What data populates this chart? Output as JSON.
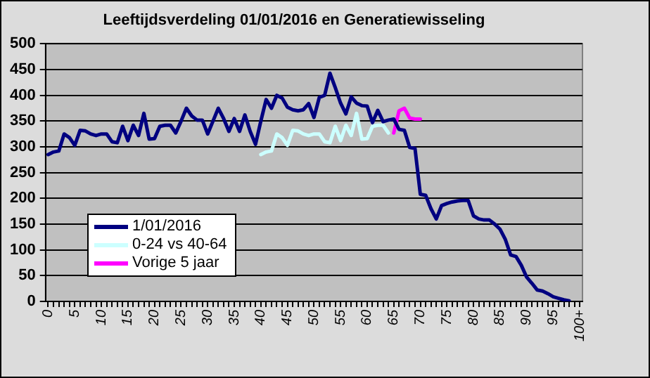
{
  "chart_data": {
    "type": "line",
    "title": "Leeftijdsverdeling 01/01/2016 en Generatiewisseling",
    "categories": [
      "0",
      null,
      null,
      null,
      null,
      "5",
      null,
      null,
      null,
      null,
      "10",
      null,
      null,
      null,
      null,
      "15",
      null,
      null,
      null,
      null,
      "20",
      null,
      null,
      null,
      null,
      "25",
      null,
      null,
      null,
      null,
      "30",
      null,
      null,
      null,
      null,
      "35",
      null,
      null,
      null,
      null,
      "40",
      null,
      null,
      null,
      null,
      "45",
      null,
      null,
      null,
      null,
      "50",
      null,
      null,
      null,
      null,
      "55",
      null,
      null,
      null,
      null,
      "60",
      null,
      null,
      null,
      null,
      "65",
      null,
      null,
      null,
      null,
      "70",
      null,
      null,
      null,
      null,
      "75",
      null,
      null,
      null,
      null,
      "80",
      null,
      null,
      null,
      null,
      "85",
      null,
      null,
      null,
      null,
      "90",
      null,
      null,
      null,
      null,
      "95",
      null,
      null,
      null,
      null,
      "100+"
    ],
    "series": [
      {
        "name": "1/01/2016",
        "color": "#000080",
        "values": [
          285,
          290,
          292,
          325,
          318,
          303,
          332,
          331,
          325,
          322,
          325,
          325,
          310,
          308,
          340,
          312,
          342,
          322,
          365,
          315,
          316,
          340,
          342,
          342,
          327,
          350,
          375,
          360,
          352,
          352,
          325,
          350,
          375,
          355,
          330,
          355,
          330,
          362,
          330,
          305,
          350,
          392,
          375,
          400,
          395,
          377,
          372,
          370,
          372,
          384,
          357,
          396,
          400,
          443,
          415,
          385,
          364,
          397,
          385,
          380,
          379,
          347,
          371,
          349,
          352,
          354,
          334,
          332,
          299,
          297,
          208,
          206,
          180,
          160,
          186,
          190,
          193,
          195,
          196,
          196,
          166,
          160,
          158,
          158,
          150,
          140,
          120,
          90,
          87,
          70,
          47,
          35,
          22,
          20,
          15,
          9,
          6,
          3,
          1,
          null,
          null
        ]
      },
      {
        "name": "0-24 vs 40-64",
        "color": "#ccffff",
        "values": [
          null,
          null,
          null,
          null,
          null,
          null,
          null,
          null,
          null,
          null,
          null,
          null,
          null,
          null,
          null,
          null,
          null,
          null,
          null,
          null,
          null,
          null,
          null,
          null,
          null,
          null,
          null,
          null,
          null,
          null,
          null,
          null,
          null,
          null,
          null,
          null,
          null,
          null,
          null,
          null,
          285,
          290,
          292,
          325,
          318,
          303,
          332,
          331,
          325,
          322,
          325,
          325,
          310,
          308,
          340,
          312,
          342,
          322,
          365,
          315,
          316,
          340,
          342,
          342,
          327,
          null,
          null,
          null,
          null,
          null,
          null,
          null,
          null,
          null,
          null,
          null,
          null,
          null,
          null,
          null,
          null,
          null,
          null,
          null,
          null,
          null,
          null,
          null,
          null,
          null,
          null,
          null,
          null,
          null,
          null,
          null,
          null,
          null,
          null,
          null,
          null
        ]
      },
      {
        "name": "Vorige 5 jaar",
        "color": "#ff00ff",
        "values": [
          null,
          null,
          null,
          null,
          null,
          null,
          null,
          null,
          null,
          null,
          null,
          null,
          null,
          null,
          null,
          null,
          null,
          null,
          null,
          null,
          null,
          null,
          null,
          null,
          null,
          null,
          null,
          null,
          null,
          null,
          null,
          null,
          null,
          null,
          null,
          null,
          null,
          null,
          null,
          null,
          null,
          null,
          null,
          null,
          null,
          null,
          null,
          null,
          null,
          null,
          null,
          null,
          null,
          null,
          null,
          null,
          null,
          null,
          null,
          null,
          null,
          null,
          null,
          null,
          null,
          327,
          370,
          375,
          356,
          354,
          354,
          null,
          null,
          null,
          null,
          null,
          null,
          null,
          null,
          null,
          null,
          null,
          null,
          null,
          null,
          null,
          null,
          null,
          null,
          null,
          null,
          null,
          null,
          null,
          null,
          null,
          null,
          null,
          null,
          null,
          null
        ]
      }
    ],
    "ylim": [
      0,
      500
    ],
    "yticks": [
      0,
      50,
      100,
      150,
      200,
      250,
      300,
      350,
      400,
      450,
      500
    ],
    "grid": "y",
    "legend": "bottom left",
    "marker": "none",
    "line_style": "solid"
  }
}
